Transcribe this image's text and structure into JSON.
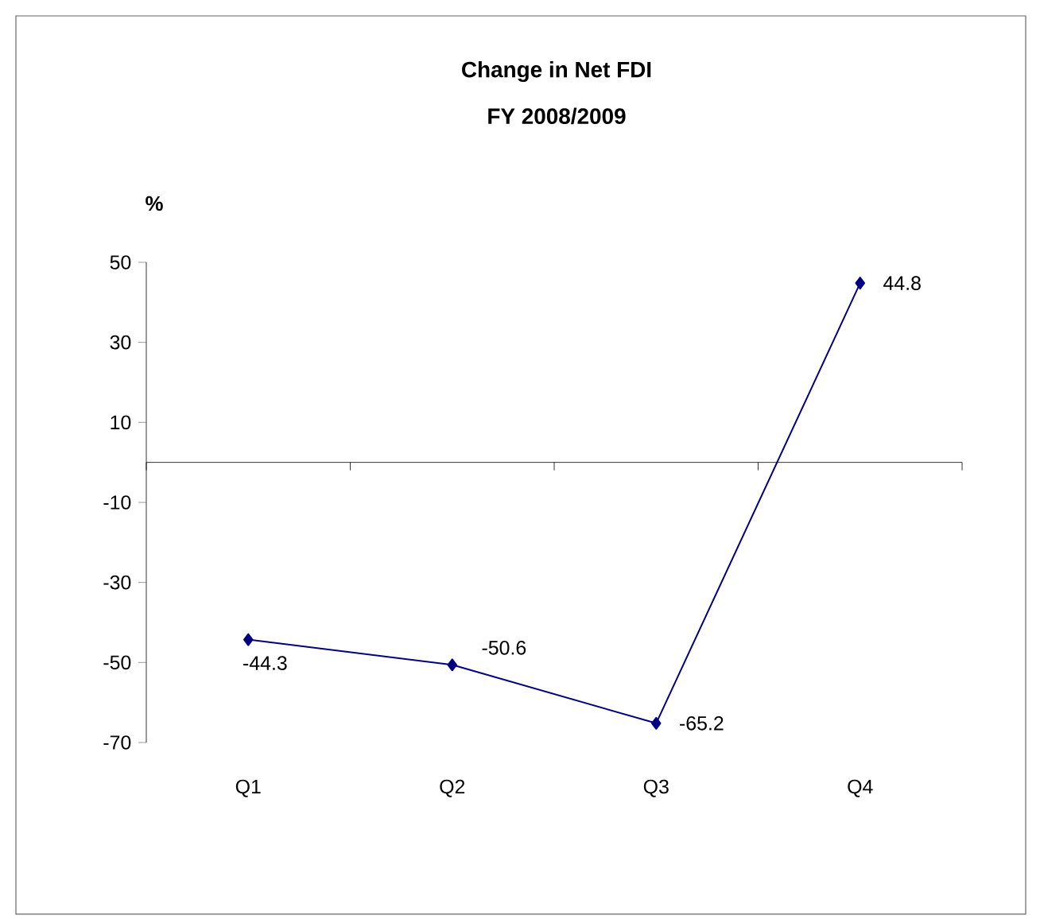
{
  "chart_data": {
    "type": "line",
    "title": "Change in Net FDI",
    "subtitle": "FY 2008/2009",
    "ylabel": "%",
    "categories": [
      "Q1",
      "Q2",
      "Q3",
      "Q4"
    ],
    "values": [
      -44.3,
      -50.6,
      -65.2,
      44.8
    ],
    "color": "#000080",
    "ylim": [
      -70,
      50
    ],
    "yticks": [
      -70,
      -50,
      -30,
      -10,
      10,
      30,
      50
    ],
    "data_labels": true,
    "marker": "diamond",
    "line_style": "solid",
    "grid": false
  }
}
